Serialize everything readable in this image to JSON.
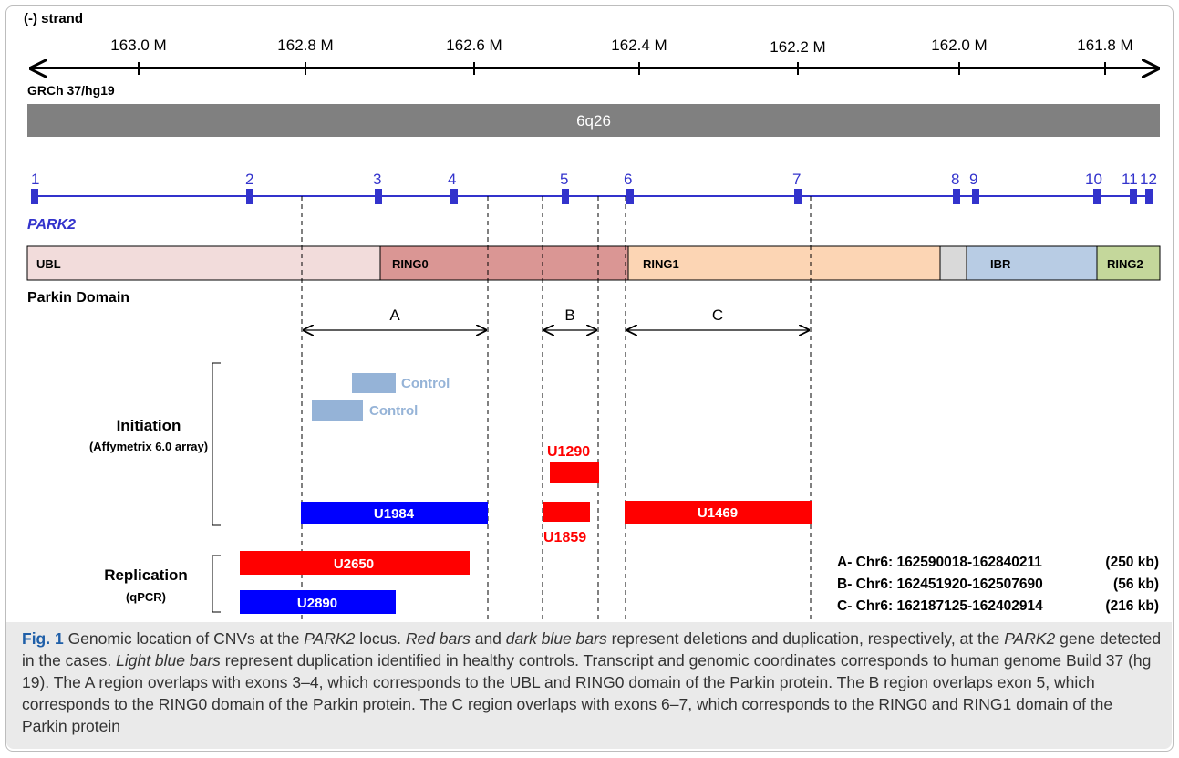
{
  "strand_label": "(-) strand",
  "assembly_label": "GRCh 37/hg19",
  "band_label": "6q26",
  "axis_ticks": [
    "163.0 M",
    "162.8 M",
    "162.6 M",
    "162.4 M",
    "162.2 M",
    "162.0 M",
    "161.8 M"
  ],
  "gene_label": "PARK2",
  "exons": [
    "1",
    "2",
    "3",
    "4",
    "5",
    "6",
    "7",
    "8",
    "9",
    "10",
    "11",
    "12"
  ],
  "domains": [
    "UBL",
    "RING0",
    "RING1",
    "",
    "IBR",
    "RING2"
  ],
  "domain_label": "Parkin Domain",
  "regions": [
    "A",
    "B",
    "C"
  ],
  "phase_initiation": "Initiation",
  "phase_initiation_sub": "(Affymetrix 6.0 array)",
  "phase_replication": "Replication",
  "phase_replication_sub": "(qPCR)",
  "bars": {
    "control1": "Control",
    "control2": "Control",
    "u1290": "U1290",
    "u1984": "U1984",
    "u1859": "U1859",
    "u1469": "U1469",
    "u2650": "U2650",
    "u2890": "U2890"
  },
  "region_coords": [
    {
      "name": "A- Chr6: 162590018-162840211",
      "size": "(250 kb)"
    },
    {
      "name": "B- Chr6: 162451920-162507690",
      "size": "(56 kb)"
    },
    {
      "name": "C- Chr6: 162187125-162402914",
      "size": "(216 kb)"
    }
  ],
  "caption": {
    "fig": "Fig. 1",
    "s1": " Genomic location of CNVs at the ",
    "gene1": "PARK2",
    "s2": " locus. ",
    "red": "Red bars",
    "s3": " and ",
    "dark": "dark blue bars",
    "s4": " represent deletions and duplication, respectively, at the ",
    "gene2": "PARK2",
    "s5": " gene detected in the cases. ",
    "light": "Light blue bars",
    "s6": " represent duplication identified in healthy controls. Transcript and genomic coordinates corresponds to human genome Build 37 (hg 19). The A region overlaps with exons 3–4, which corresponds to the UBL and RING0 domain of the Parkin protein. The B region overlaps exon 5, which corresponds to the RING0 domain of the Parkin protein. The C region overlaps with exons 6–7, which corresponds to the RING0 and RING1 domain of the Parkin protein"
  },
  "colors": {
    "gene": "#3333cc",
    "deletion": "#ff0000",
    "duplication": "#0000ff",
    "control": "#95b3d7",
    "band": "#808080"
  }
}
